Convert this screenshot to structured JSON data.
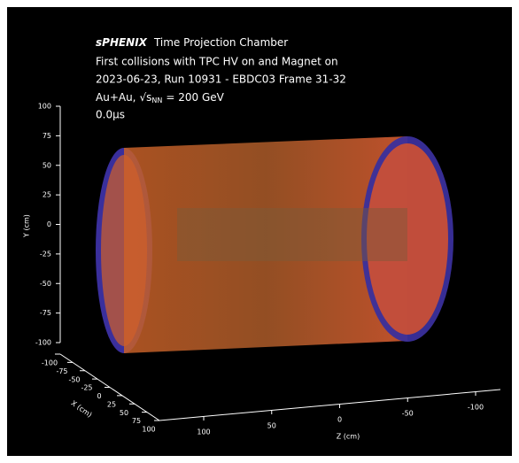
{
  "header": {
    "experiment": "sPHENIX",
    "detector": "Time Projection Chamber",
    "line1": "First collisions with TPC HV on and Magnet on",
    "line2": "2023-06-23, Run 10931 - EBDC03 Frame 31-32",
    "species": "Au+Au,",
    "energy_symbol": "√s",
    "energy_subscript": "NN",
    "energy": "= 200 GeV",
    "time": "0.0μs"
  },
  "axes": {
    "y": {
      "label": "Y (cm)",
      "ticks": [
        100,
        75,
        50,
        25,
        0,
        -25,
        -50,
        -75,
        -100
      ]
    },
    "x": {
      "label": "X (cm)",
      "ticks": [
        -100,
        -75,
        -50,
        -25,
        0,
        25,
        50,
        75,
        100
      ]
    },
    "z": {
      "label": "Z (cm)",
      "ticks": [
        100,
        50,
        0,
        -50,
        -100
      ]
    }
  }
}
